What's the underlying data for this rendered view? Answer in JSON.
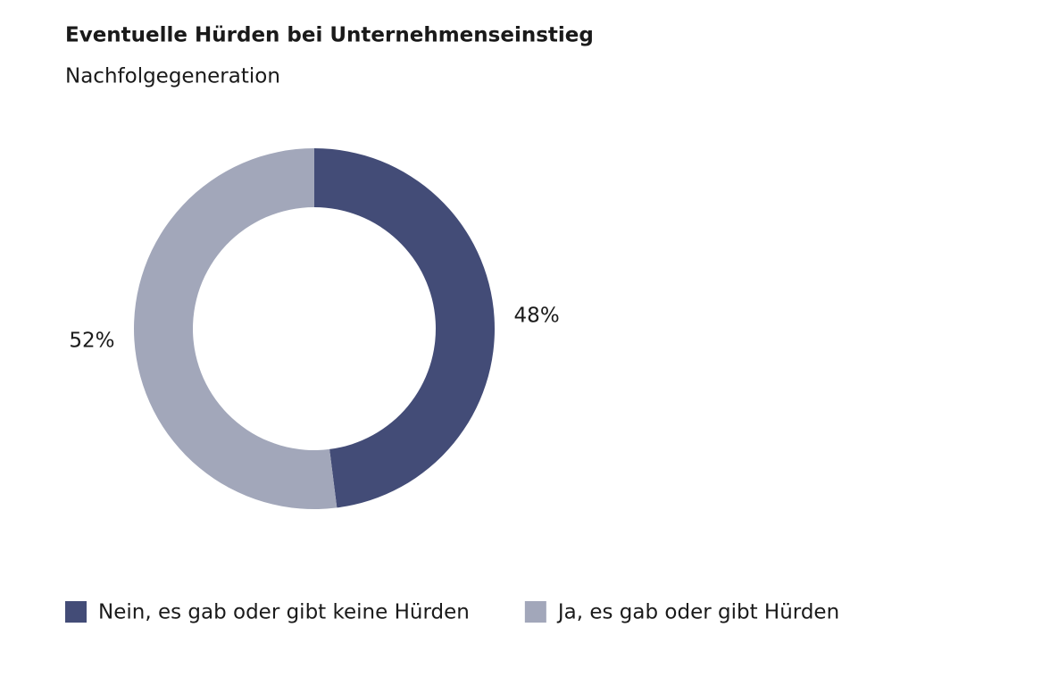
{
  "chart_data": {
    "type": "donut",
    "title": "Eventuelle Hürden bei Unternehmenseinstieg",
    "subtitle": "Nachfolgegeneration",
    "categories": [
      "Nein, es gab oder gibt keine Hürden",
      "Ja, es gab oder gibt Hürden"
    ],
    "values": [
      48,
      52
    ],
    "value_labels": [
      "48%",
      "52%"
    ],
    "colors": [
      "#434c77",
      "#a2a7ba"
    ]
  }
}
